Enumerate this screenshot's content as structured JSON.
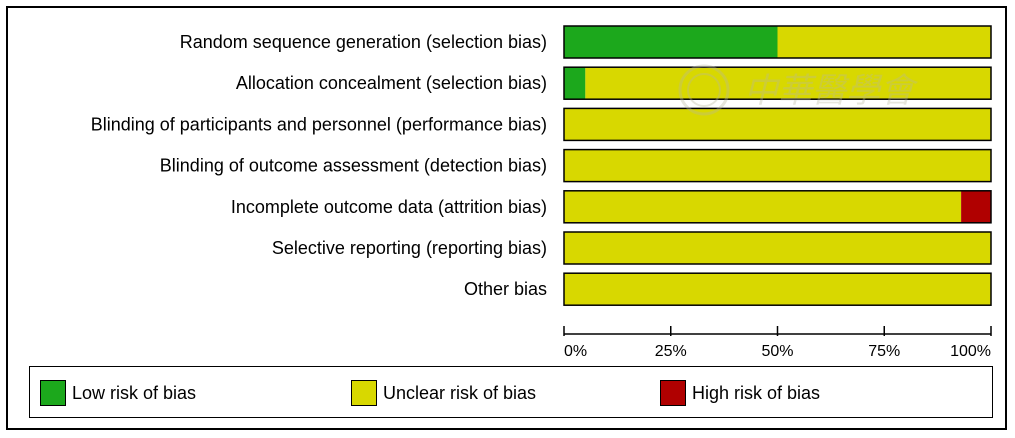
{
  "colors": {
    "low": "#1ca81c",
    "unclear": "#d8d800",
    "high": "#b00000",
    "border": "#000000"
  },
  "legend": {
    "low_label": "Low risk of bias",
    "unclear_label": "Unclear risk of bias",
    "high_label": "High risk of bias"
  },
  "watermark": {
    "text": "中華醫學會"
  },
  "chart_data": {
    "type": "bar",
    "orientation": "horizontal",
    "stacked": true,
    "categories": [
      "Random sequence generation (selection bias)",
      "Allocation concealment (selection bias)",
      "Blinding of participants and personnel (performance bias)",
      "Blinding of outcome assessment (detection bias)",
      "Incomplete outcome data (attrition bias)",
      "Selective reporting (reporting bias)",
      "Other bias"
    ],
    "series": [
      {
        "name": "Low risk of bias",
        "values": [
          50,
          5,
          0,
          0,
          0,
          0,
          0
        ]
      },
      {
        "name": "Unclear risk of bias",
        "values": [
          50,
          95,
          100,
          100,
          93,
          100,
          100
        ]
      },
      {
        "name": "High risk of bias",
        "values": [
          0,
          0,
          0,
          0,
          7,
          0,
          0
        ]
      }
    ],
    "xlim": [
      0,
      100
    ],
    "xticks": [
      "0%",
      "25%",
      "50%",
      "75%",
      "100%"
    ],
    "xtick_values": [
      0,
      25,
      50,
      75,
      100
    ],
    "legend_position": "bottom",
    "grid": false
  }
}
